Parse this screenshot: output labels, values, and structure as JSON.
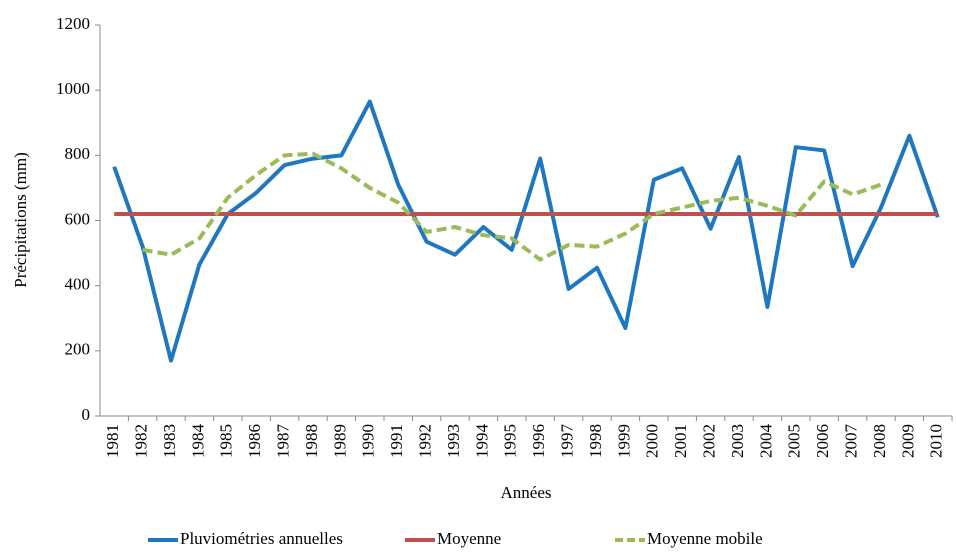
{
  "chart_data": {
    "type": "line",
    "y_label": "Précipitations (mm)",
    "x_label": "Années",
    "categories": [
      "1981",
      "1982",
      "1983",
      "1984",
      "1985",
      "1986",
      "1987",
      "1988",
      "1989",
      "1990",
      "1991",
      "1992",
      "1993",
      "1994",
      "1995",
      "1996",
      "1997",
      "1998",
      "1999",
      "2000",
      "2001",
      "2002",
      "2003",
      "2004",
      "2005",
      "2006",
      "2007",
      "2008",
      "2009",
      "2010"
    ],
    "series": [
      {
        "name": "Pluviométries annuelles",
        "color": "#1f77c0",
        "dash": false,
        "values": [
          765,
          520,
          170,
          465,
          620,
          685,
          770,
          790,
          800,
          965,
          710,
          535,
          495,
          580,
          510,
          790,
          390,
          455,
          270,
          725,
          760,
          575,
          795,
          335,
          825,
          815,
          460,
          640,
          860,
          610
        ]
      },
      {
        "name": "Moyenne",
        "color": "#c0504d",
        "dash": false,
        "values": [
          620,
          620,
          620,
          620,
          620,
          620,
          620,
          620,
          620,
          620,
          620,
          620,
          620,
          620,
          620,
          620,
          620,
          620,
          620,
          620,
          620,
          620,
          620,
          620,
          620,
          620,
          620,
          620,
          620,
          620
        ]
      },
      {
        "name": "Moyenne mobile",
        "color": "#9bbb59",
        "dash": true,
        "values": [
          null,
          510,
          495,
          545,
          670,
          740,
          800,
          805,
          760,
          700,
          655,
          565,
          580,
          555,
          545,
          480,
          525,
          520,
          560,
          620,
          640,
          660,
          670,
          645,
          615,
          720,
          680,
          710,
          null,
          null
        ]
      }
    ],
    "ylim": [
      0,
      1200
    ],
    "yticks": [
      0,
      200,
      400,
      600,
      800,
      1000,
      1200
    ]
  }
}
